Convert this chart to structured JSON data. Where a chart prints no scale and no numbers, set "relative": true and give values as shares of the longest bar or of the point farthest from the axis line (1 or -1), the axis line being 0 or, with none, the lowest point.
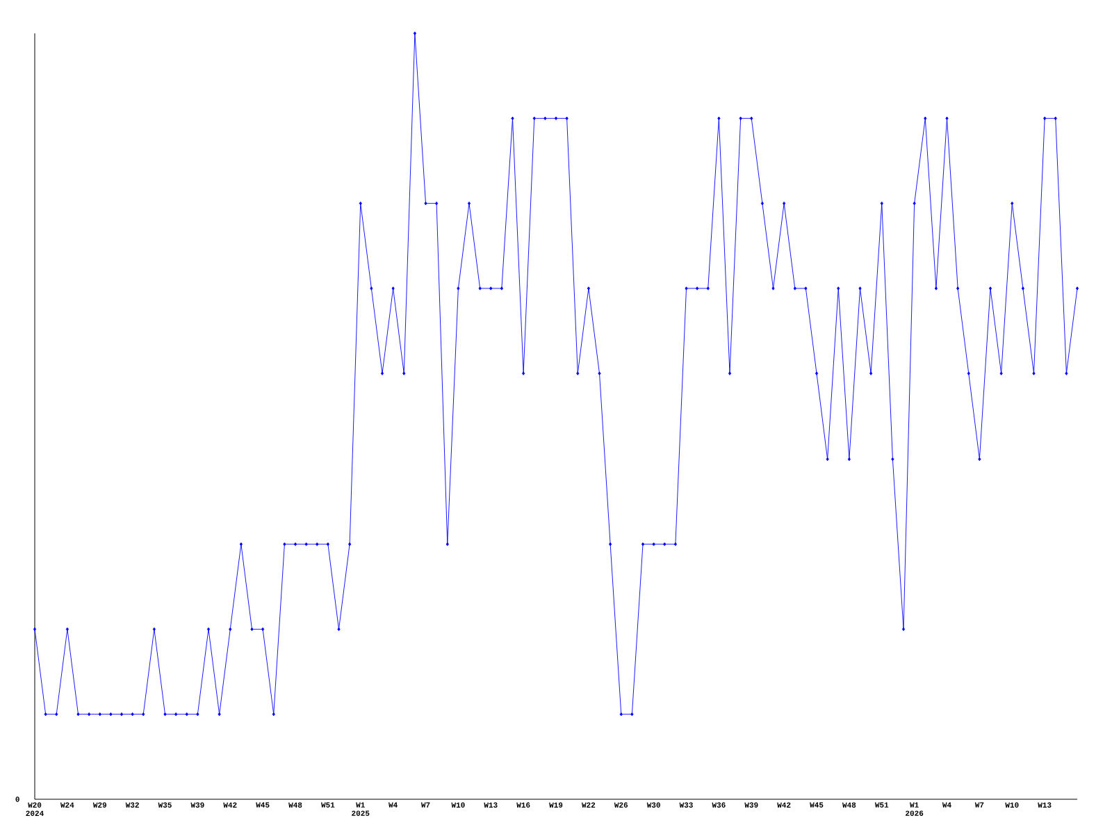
{
  "chart_data": {
    "type": "line",
    "relative": true,
    "color": "#0000ff",
    "marker": "diamond",
    "line_style": "solid",
    "annotations": [
      "0"
    ],
    "categories": [
      "W20 2024",
      null,
      null,
      "W24",
      null,
      null,
      "W29",
      null,
      null,
      "W32",
      null,
      null,
      "W35",
      null,
      null,
      "W39",
      null,
      null,
      "W42",
      null,
      null,
      "W45",
      null,
      null,
      "W48",
      null,
      null,
      "W51",
      null,
      null,
      "W1 2025",
      null,
      null,
      "W4",
      null,
      null,
      "W7",
      null,
      null,
      "W10",
      null,
      null,
      "W13",
      null,
      null,
      "W16",
      null,
      null,
      "W19",
      null,
      null,
      "W22",
      null,
      null,
      "W26",
      null,
      null,
      "W30",
      null,
      null,
      "W33",
      null,
      null,
      "W36",
      null,
      null,
      "W39",
      null,
      null,
      "W42",
      null,
      null,
      "W45",
      null,
      null,
      "W48",
      null,
      null,
      "W51",
      null,
      null,
      "W1 2026",
      null,
      null,
      "W4",
      null,
      null,
      "W7",
      null,
      null,
      "W10",
      null,
      null,
      "W13",
      null,
      null,
      null
    ],
    "values": [
      0.222,
      0.111,
      0.111,
      0.222,
      0.111,
      0.111,
      0.111,
      0.111,
      0.111,
      0.111,
      0.111,
      0.222,
      0.111,
      0.111,
      0.111,
      0.111,
      0.222,
      0.111,
      0.222,
      0.333,
      0.222,
      0.222,
      0.111,
      0.333,
      0.333,
      0.333,
      0.333,
      0.333,
      0.222,
      0.333,
      0.778,
      0.667,
      0.556,
      0.667,
      0.556,
      1,
      0.778,
      0.778,
      0.333,
      0.667,
      0.778,
      0.667,
      0.667,
      0.667,
      0.889,
      0.556,
      0.889,
      0.889,
      0.889,
      0.889,
      0.556,
      0.667,
      0.556,
      0.333,
      0.111,
      0.111,
      0.333,
      0.333,
      0.333,
      0.333,
      0.667,
      0.667,
      0.667,
      0.889,
      0.556,
      0.889,
      0.889,
      0.778,
      0.667,
      0.778,
      0.667,
      0.667,
      0.556,
      0.444,
      0.667,
      0.444,
      0.667,
      0.556,
      0.778,
      0.444,
      0.222,
      0.778,
      0.889,
      0.667,
      0.889,
      0.667,
      0.556,
      0.444,
      0.667,
      0.556,
      0.778,
      0.667,
      0.556,
      0.889,
      0.889,
      0.556,
      0.667
    ]
  }
}
